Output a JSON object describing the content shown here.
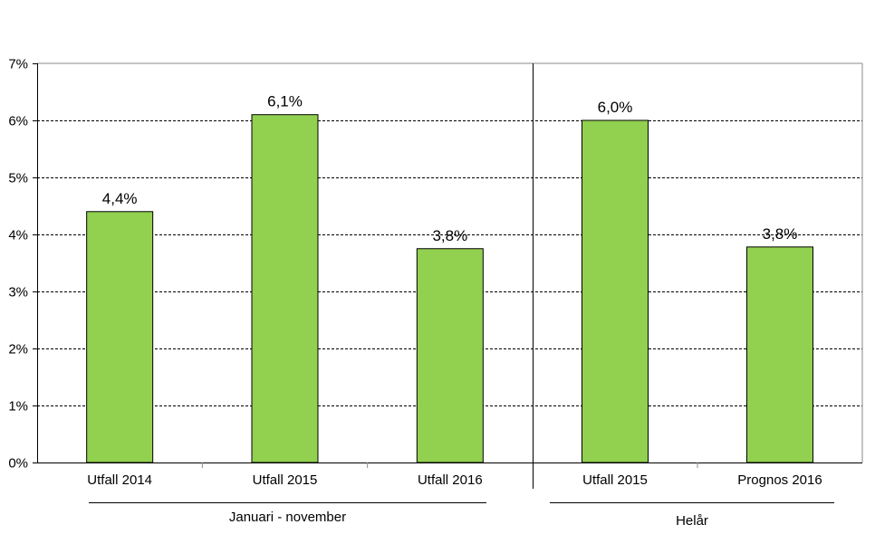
{
  "chart_data": {
    "type": "bar",
    "title": "",
    "xlabel": "",
    "ylabel": "",
    "ylim": [
      0,
      7
    ],
    "y_ticks": [
      "0%",
      "1%",
      "2%",
      "3%",
      "4%",
      "5%",
      "6%",
      "7%"
    ],
    "grid": true,
    "categories": [
      "Utfall 2014",
      "Utfall 2015",
      "Utfall 2016",
      "Utfall 2015",
      "Prognos 2016"
    ],
    "values": [
      4.4,
      6.1,
      3.75,
      6.0,
      3.78
    ],
    "data_labels": [
      "4,4%",
      "6,1%",
      "3,8%",
      "6,0%",
      "3,8%"
    ],
    "groups": [
      {
        "label": "Januari - november",
        "categories": [
          0,
          1,
          2
        ]
      },
      {
        "label": "Helår",
        "categories": [
          3,
          4
        ]
      }
    ],
    "bar_color": "#92d050"
  }
}
